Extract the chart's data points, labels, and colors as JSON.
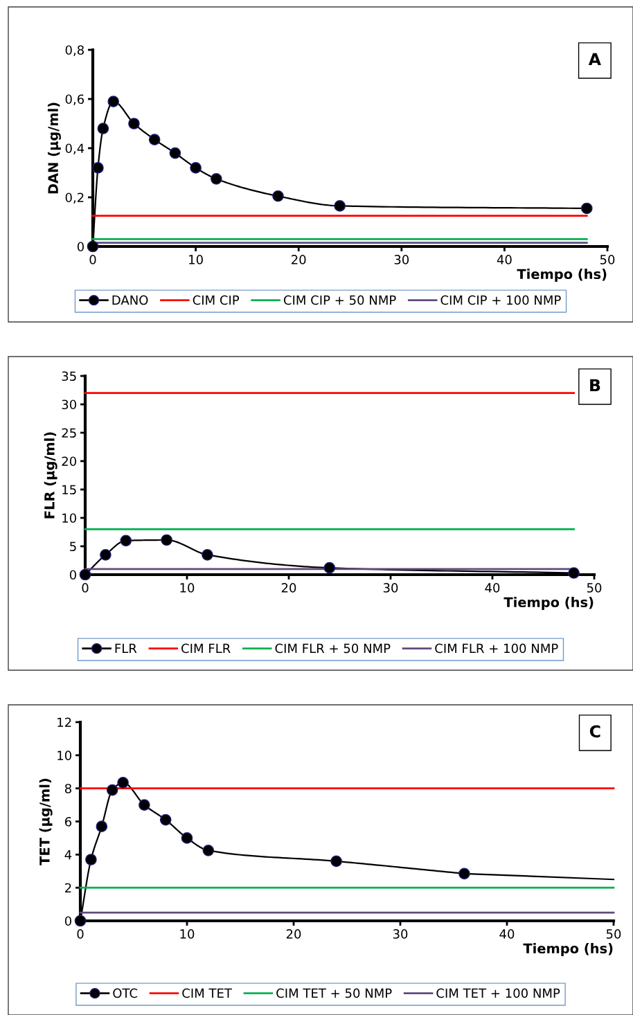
{
  "chart_data": [
    {
      "type": "line",
      "title": "A",
      "xlabel": "Tiempo (hs)",
      "ylabel": "DAN (µg/ml)",
      "xlim": [
        0,
        50
      ],
      "xticks": [
        0,
        10,
        20,
        30,
        40,
        50
      ],
      "ylim": [
        0,
        0.8
      ],
      "yticks": [
        0,
        {
          "value": 0.2,
          "label": "0,2"
        },
        {
          "value": 0.4,
          "label": "0,4"
        },
        {
          "value": 0.6,
          "label": "0,6"
        },
        {
          "value": 0.8,
          "label": "0,8"
        }
      ],
      "grid": false,
      "legend": "bottom",
      "series": [
        {
          "name": "DANO",
          "color": "#000000",
          "marker": "circle",
          "x": [
            0,
            0.5,
            1,
            2,
            4,
            6,
            8,
            10,
            12,
            18,
            24,
            48
          ],
          "values": [
            0,
            0.32,
            0.48,
            0.59,
            0.5,
            0.435,
            0.38,
            0.32,
            0.275,
            0.205,
            0.165,
            0.155
          ]
        },
        {
          "name": "CIM CIP",
          "color": "#ff0000",
          "marker": "none",
          "x": [
            0,
            48
          ],
          "values": [
            0.125,
            0.125
          ]
        },
        {
          "name": "CIM CIP + 50 NMP",
          "color": "#00b050",
          "marker": "none",
          "x": [
            0,
            48
          ],
          "values": [
            0.03,
            0.03
          ]
        },
        {
          "name": "CIM CIP + 100 NMP",
          "color": "#604a7b",
          "marker": "none",
          "x": [
            0,
            48
          ],
          "values": [
            0.015,
            0.015
          ]
        }
      ]
    },
    {
      "type": "line",
      "title": "B",
      "xlabel": "Tiempo (hs)",
      "ylabel": "FLR (µg/ml)",
      "xlim": [
        0,
        50
      ],
      "xticks": [
        0,
        10,
        20,
        30,
        40,
        50
      ],
      "ylim": [
        0,
        35
      ],
      "yticks": [
        0,
        5,
        10,
        15,
        20,
        25,
        30,
        35
      ],
      "grid": false,
      "legend": "bottom",
      "series": [
        {
          "name": "FLR",
          "color": "#000000",
          "marker": "circle",
          "x": [
            0,
            2,
            4,
            8,
            12,
            24,
            48
          ],
          "values": [
            0,
            3.5,
            6,
            6.1,
            3.5,
            1.2,
            0.3
          ]
        },
        {
          "name": "CIM FLR",
          "color": "#ff0000",
          "marker": "none",
          "x": [
            0,
            48
          ],
          "values": [
            32,
            32
          ]
        },
        {
          "name": "CIM FLR + 50 NMP",
          "color": "#00b050",
          "marker": "none",
          "x": [
            0,
            48
          ],
          "values": [
            8,
            8
          ]
        },
        {
          "name": "CIM FLR + 100 NMP",
          "color": "#604a7b",
          "marker": "none",
          "x": [
            0,
            48
          ],
          "values": [
            1,
            1
          ]
        }
      ]
    },
    {
      "type": "line",
      "title": "C",
      "xlabel": "Tiempo (hs)",
      "ylabel": "TET (µg/ml)",
      "xlim": [
        0,
        50
      ],
      "xticks": [
        0,
        10,
        20,
        30,
        40,
        50
      ],
      "ylim": [
        0,
        12
      ],
      "yticks": [
        0,
        2,
        4,
        6,
        8,
        10,
        12
      ],
      "grid": false,
      "legend": "bottom",
      "series": [
        {
          "name": "OTC",
          "color": "#000000",
          "marker": "circle",
          "x": [
            0,
            1,
            2,
            3,
            4,
            6,
            8,
            10,
            12,
            24,
            36
          ],
          "values": [
            0,
            3.7,
            5.7,
            7.9,
            8.35,
            7.0,
            6.1,
            5.0,
            4.25,
            3.6,
            2.85
          ]
        },
        {
          "color": "#000000",
          "marker": "none",
          "x": [
            36,
            50
          ],
          "values": [
            2.85,
            2.5
          ]
        },
        {
          "name": "CIM TET",
          "color": "#ff0000",
          "marker": "none",
          "x": [
            0,
            50
          ],
          "values": [
            8,
            8
          ]
        },
        {
          "name": "CIM TET + 50 NMP",
          "color": "#00b050",
          "marker": "none",
          "x": [
            0,
            50
          ],
          "values": [
            2,
            2
          ]
        },
        {
          "name": "CIM TET + 100 NMP",
          "color": "#604a7b",
          "marker": "none",
          "x": [
            0,
            50
          ],
          "values": [
            0.5,
            0.5
          ]
        }
      ]
    }
  ]
}
